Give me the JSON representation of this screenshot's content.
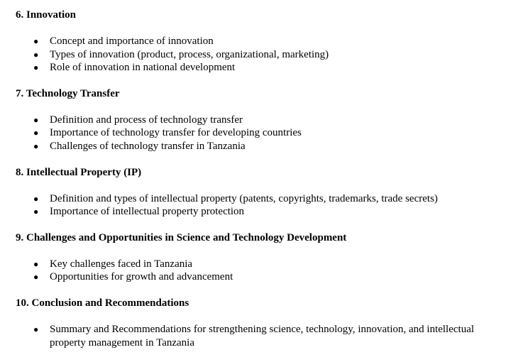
{
  "sections": [
    {
      "heading": "6. Innovation",
      "items": [
        "Concept and importance of innovation",
        "Types of innovation (product, process, organizational, marketing)",
        "Role of innovation in national development"
      ]
    },
    {
      "heading": "7. Technology Transfer",
      "items": [
        "Definition and process of technology transfer",
        "Importance of technology transfer for developing countries",
        "Challenges of technology transfer in Tanzania"
      ]
    },
    {
      "heading": "8. Intellectual Property (IP)",
      "items": [
        "Definition and types of intellectual property (patents, copyrights, trademarks, trade secrets)",
        "Importance of intellectual property protection"
      ]
    },
    {
      "heading": "9. Challenges and Opportunities in Science and Technology Development",
      "items": [
        "Key challenges faced in Tanzania",
        "Opportunities for growth and advancement"
      ]
    },
    {
      "heading": "10. Conclusion and Recommendations",
      "items": [
        "Summary and Recommendations for strengthening science, technology, innovation, and intellectual property management in Tanzania"
      ]
    }
  ]
}
